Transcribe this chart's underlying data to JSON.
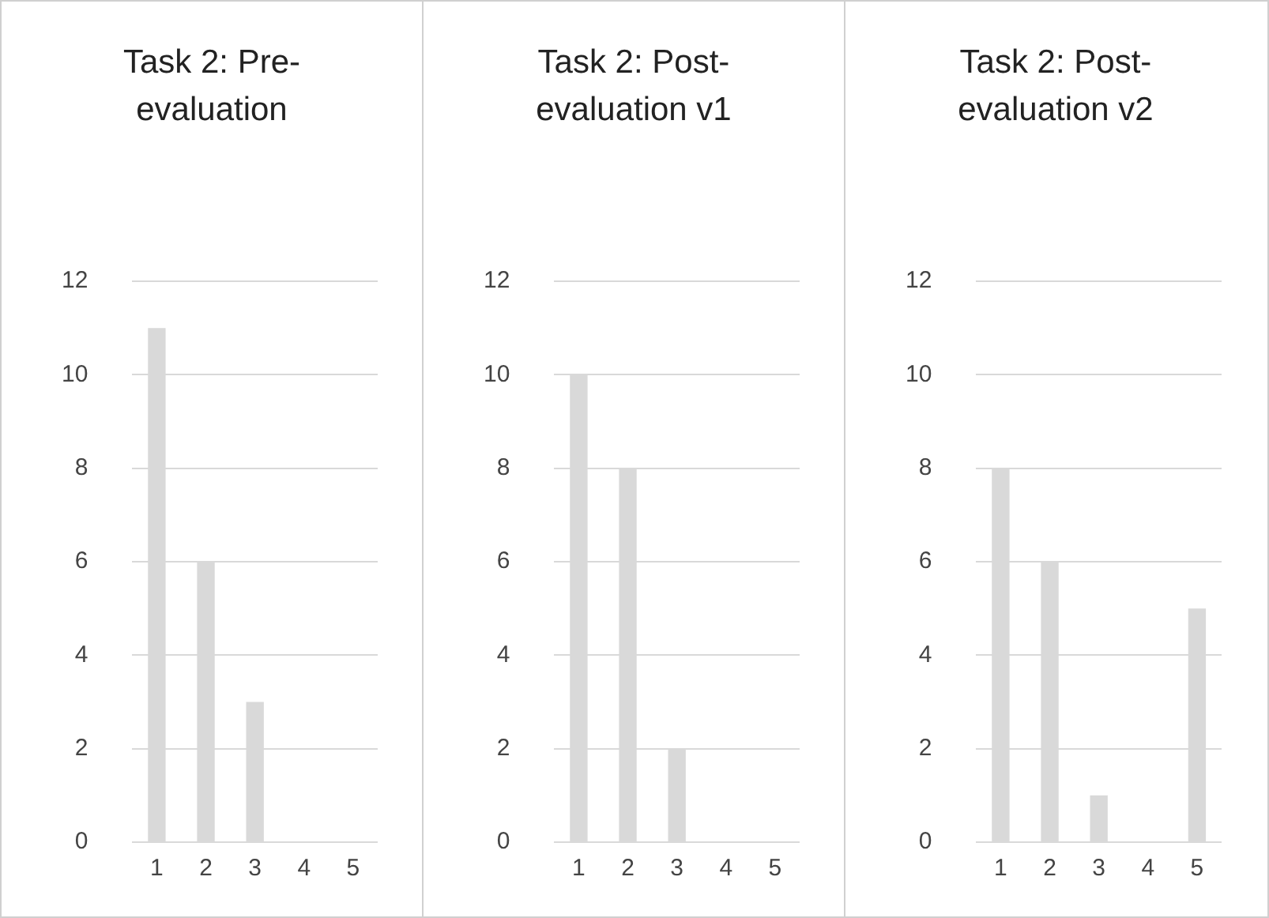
{
  "chart_data": [
    {
      "type": "bar",
      "title": "Task 2: Pre-evaluation",
      "categories": [
        "1",
        "2",
        "3",
        "4",
        "5"
      ],
      "values": [
        11,
        6,
        3,
        0,
        0
      ],
      "color": "#d9d9d9",
      "ylim": [
        0,
        12
      ],
      "yticks": [
        0,
        2,
        4,
        6,
        8,
        10,
        12
      ],
      "grid": "y"
    },
    {
      "type": "bar",
      "title": "Task 2: Post-evaluation v1",
      "categories": [
        "1",
        "2",
        "3",
        "4",
        "5"
      ],
      "values": [
        10,
        8,
        2,
        0,
        0
      ],
      "color": "#d9d9d9",
      "ylim": [
        0,
        12
      ],
      "yticks": [
        0,
        2,
        4,
        6,
        8,
        10,
        12
      ],
      "grid": "y"
    },
    {
      "type": "bar",
      "title": "Task 2: Post-evaluation v2",
      "categories": [
        "1",
        "2",
        "3",
        "4",
        "5"
      ],
      "values": [
        8,
        6,
        1,
        0,
        5
      ],
      "color": "#d9d9d9",
      "ylim": [
        0,
        12
      ],
      "yticks": [
        0,
        2,
        4,
        6,
        8,
        10,
        12
      ],
      "grid": "y"
    }
  ]
}
